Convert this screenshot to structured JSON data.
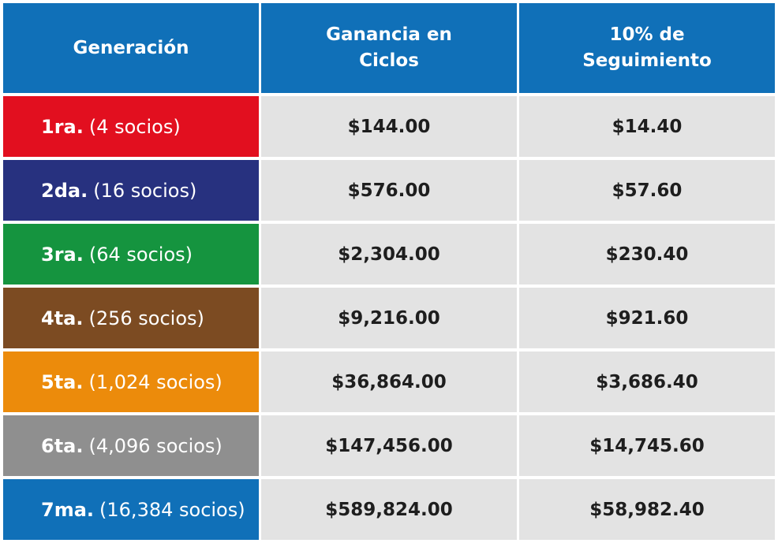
{
  "headers": {
    "generation": "Generación",
    "cycles": "Ganancia en Ciclos",
    "tracking": "10% de Seguimiento"
  },
  "rows": [
    {
      "ordinal": "1ra.",
      "partners": "(4 socios)",
      "cycles": "$144.00",
      "tracking": "$14.40",
      "color": "#e20f1f"
    },
    {
      "ordinal": "2da.",
      "partners": "(16 socios)",
      "cycles": "$576.00",
      "tracking": "$57.60",
      "color": "#27317f"
    },
    {
      "ordinal": "3ra.",
      "partners": "(64 socios)",
      "cycles": "$2,304.00",
      "tracking": "$230.40",
      "color": "#15943f"
    },
    {
      "ordinal": "4ta.",
      "partners": "(256 socios)",
      "cycles": "$9,216.00",
      "tracking": "$921.60",
      "color": "#7c4b22"
    },
    {
      "ordinal": "5ta.",
      "partners": "(1,024 socios)",
      "cycles": "$36,864.00",
      "tracking": "$3,686.40",
      "color": "#ec8b0b"
    },
    {
      "ordinal": "6ta.",
      "partners": "(4,096 socios)",
      "cycles": "$147,456.00",
      "tracking": "$14,745.60",
      "color": "#8f8f8f"
    },
    {
      "ordinal": "7ma.",
      "partners": "(16,384 socios)",
      "cycles": "$589,824.00",
      "tracking": "$58,982.40",
      "color": "#1070b8"
    }
  ]
}
